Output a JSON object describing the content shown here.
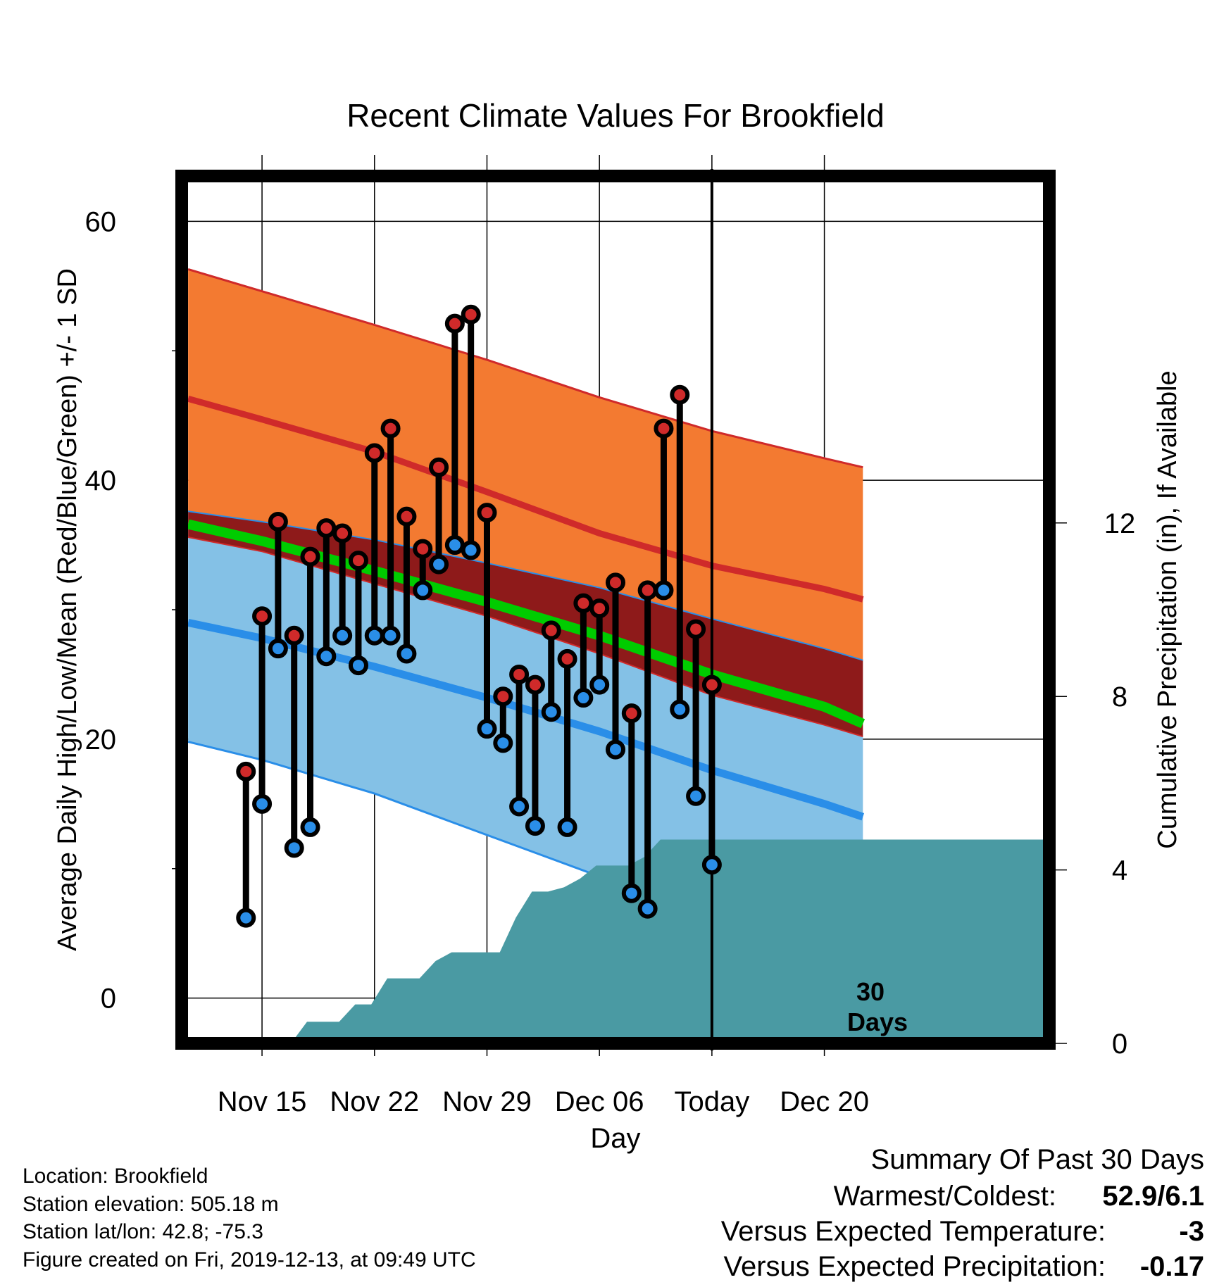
{
  "chart_data": {
    "type": "line",
    "title": "Recent Climate Values For Brookfield",
    "xlabel": "Day",
    "ylabel": "Average Daily High/Low/Mean (Red/Blue/Green) +/- 1 SD",
    "y2label": "Cumulative Precipitation (in), If Available",
    "xlim_days": [
      -33,
      21
    ],
    "ylim": [
      -3.5,
      63.5
    ],
    "y2lim": [
      0,
      20
    ],
    "x_ticks": [
      {
        "day": -28,
        "label": "Nov 15"
      },
      {
        "day": -21,
        "label": "Nov 22"
      },
      {
        "day": -14,
        "label": "Nov 29"
      },
      {
        "day": -7,
        "label": "Dec 06"
      },
      {
        "day": 0,
        "label": "Today"
      },
      {
        "day": 7,
        "label": "Dec 20"
      }
    ],
    "y_ticks": [
      0,
      20,
      40,
      60
    ],
    "y2_ticks": [
      0,
      4,
      8,
      12
    ],
    "today_marker": {
      "day": 0,
      "label_line1": "30",
      "label_line2": "Days"
    },
    "normals": {
      "days": [
        -32.6,
        -28,
        -21,
        -14,
        -7,
        0,
        7,
        9.4
      ],
      "high_upper": [
        56.3,
        54.6,
        52.0,
        49.3,
        46.4,
        43.8,
        41.7,
        41.0
      ],
      "high_mean": [
        46.3,
        44.7,
        42.2,
        39.1,
        35.9,
        33.4,
        31.6,
        30.8
      ],
      "high_lower": [
        37.6,
        36.8,
        35.4,
        33.6,
        31.7,
        29.3,
        27.0,
        26.1
      ],
      "mean": [
        36.6,
        35.3,
        33.0,
        30.6,
        28.0,
        25.0,
        22.5,
        21.2
      ],
      "low_upper": [
        35.6,
        34.5,
        32.0,
        29.5,
        26.6,
        23.4,
        21.1,
        20.2
      ],
      "low_mean": [
        29.0,
        27.8,
        25.6,
        23.2,
        20.6,
        17.6,
        15.0,
        14.0
      ],
      "low_lower": [
        19.8,
        18.4,
        15.8,
        12.6,
        9.4,
        6.3,
        3.9,
        3.2
      ]
    },
    "series": [
      {
        "name": "High",
        "color": "#cf2a2a",
        "values": [
          17.5,
          29.5,
          36.8,
          28.0,
          34.1,
          36.3,
          35.9,
          33.8,
          42.1,
          44.0,
          37.2,
          34.7,
          41.0,
          52.1,
          52.8,
          37.5,
          23.3,
          25.0,
          24.2,
          28.4,
          26.2,
          30.5,
          30.1,
          32.1,
          22.0,
          31.5,
          44.0,
          46.6,
          28.5,
          24.2
        ]
      },
      {
        "name": "Low",
        "color": "#2a8ee8",
        "values": [
          6.2,
          15.0,
          27.0,
          11.6,
          13.2,
          26.4,
          28.0,
          25.7,
          28.0,
          28.0,
          26.6,
          31.5,
          33.5,
          35.0,
          34.6,
          20.8,
          19.7,
          14.8,
          13.3,
          22.1,
          13.2,
          23.2,
          24.2,
          19.2,
          8.1,
          6.9,
          31.5,
          22.3,
          15.6,
          10.3
        ]
      }
    ],
    "obs_days": [
      -29,
      -28,
      -27,
      -26,
      -25,
      -24,
      -23,
      -22,
      -21,
      -20,
      -19,
      -18,
      -17,
      -16,
      -15,
      -14,
      -13,
      -12,
      -11,
      -10,
      -9,
      -8,
      -7,
      -6,
      -5,
      -4,
      -3,
      -2,
      -1,
      0
    ],
    "precipitation": {
      "days": [
        -33,
        -26.2,
        -25.2,
        -24.2,
        -23.2,
        -22.2,
        -21.2,
        -20.2,
        -19.2,
        -18.2,
        -17.2,
        -16.2,
        -15.2,
        -14.2,
        -13.2,
        -12.2,
        -11.2,
        -10.2,
        -9.2,
        -8.2,
        -7.2,
        -6.2,
        -5.2,
        -4.2,
        -3.2,
        21
      ],
      "cumulative_in": [
        0,
        0,
        0.5,
        0.5,
        0.5,
        0.9,
        0.9,
        1.5,
        1.5,
        1.5,
        1.9,
        2.1,
        2.1,
        2.1,
        2.1,
        2.9,
        3.5,
        3.5,
        3.6,
        3.8,
        4.1,
        4.1,
        4.1,
        4.3,
        4.7,
        4.7
      ]
    }
  },
  "footer": {
    "location": "Location: Brookfield",
    "elevation": "Station elevation: 505.18 m",
    "latlon": "Station lat/lon: 42.8; -75.3",
    "created": "Figure created on Fri, 2019-12-13, at 09:49 UTC"
  },
  "summary": {
    "title": "Summary Of Past 30 Days",
    "warmest_label": "Warmest/Coldest:",
    "warmest_value": "52.9/6.1",
    "temp_label": "Versus Expected Temperature:",
    "temp_value": "-3",
    "temp_color": "#2a8ee8",
    "precip_label": "Versus Expected Precipitation:",
    "precip_value": "-0.17",
    "precip_color": "#a0522d"
  },
  "colors": {
    "high_band": "#f37a31",
    "high_line": "#cf2a2a",
    "overlap_band": "#8e1a1a",
    "mean_line": "#00cc00",
    "low_band": "#84c1e6",
    "low_line": "#2a8ee8",
    "precip_fill": "#4a9aa3"
  }
}
